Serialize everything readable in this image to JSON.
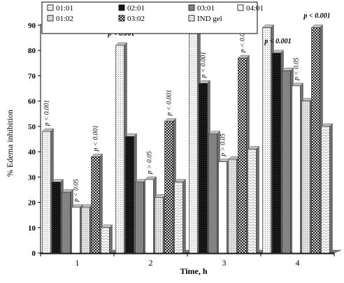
{
  "chart_data": {
    "type": "bar",
    "xlabel": "Time, h",
    "ylabel": "% Edema inhibition",
    "ylim": [
      0,
      90
    ],
    "yticks": [
      0,
      10,
      20,
      30,
      40,
      50,
      60,
      70,
      80,
      90
    ],
    "grid": false,
    "legend_position": "top-left",
    "categories": [
      "1",
      "2",
      "3",
      "4"
    ],
    "series": [
      {
        "name": "01:01",
        "values": [
          48,
          82,
          87,
          89
        ],
        "color": "#f4f4f4",
        "pattern": "dots-light"
      },
      {
        "name": "02:01",
        "values": [
          28,
          46,
          67,
          79
        ],
        "color": "#1a1a1a",
        "pattern": "solid-dark"
      },
      {
        "name": "03:01",
        "values": [
          24,
          28,
          47,
          72
        ],
        "color": "#8c8c8c",
        "pattern": "solid-gray"
      },
      {
        "name": "04:01",
        "values": [
          18,
          29,
          36,
          66
        ],
        "color": "#ffffff",
        "pattern": "plain-white"
      },
      {
        "name": "01:02",
        "values": [
          18,
          22,
          37,
          60
        ],
        "color": "#dcdcdc",
        "pattern": "dots-gray"
      },
      {
        "name": "03:02",
        "values": [
          38,
          52,
          77,
          89
        ],
        "color": "#5a5a5a",
        "pattern": "checker"
      },
      {
        "name": "IND gel",
        "values": [
          10,
          28,
          41,
          50
        ],
        "color": "#f6f6f6",
        "pattern": "waves"
      }
    ],
    "annotations": [
      {
        "text": "p < 0.001",
        "category": "1",
        "series": "01:01",
        "bold": false
      },
      {
        "text": "p < 0.05",
        "category": "1",
        "series": "04:01",
        "bold": false
      },
      {
        "text": "p < 0.001",
        "category": "1",
        "series": "03:02",
        "bold": false
      },
      {
        "text": "p < 0.001",
        "category": "2",
        "series": "01:01",
        "bold": true
      },
      {
        "text": "p > 0.05",
        "category": "2",
        "series": "04:01",
        "bold": false
      },
      {
        "text": "p < 0.001",
        "category": "2",
        "series": "03:02",
        "bold": false
      },
      {
        "text": "p < 0.001",
        "category": "3",
        "series": "02:01",
        "bold": false
      },
      {
        "text": "p > 0.05",
        "category": "3",
        "series": "04:01",
        "bold": false
      },
      {
        "text": "p < 0.001",
        "category": "3",
        "series": "03:02",
        "bold": false
      },
      {
        "text": "p < 0.001",
        "category": "4",
        "series": "02:01",
        "bold": true
      },
      {
        "text": "p < 0.05",
        "category": "4",
        "series": "04:01",
        "bold": false
      },
      {
        "text": "p < 0.001",
        "category": "4",
        "series": "03:02",
        "bold": true
      }
    ]
  }
}
